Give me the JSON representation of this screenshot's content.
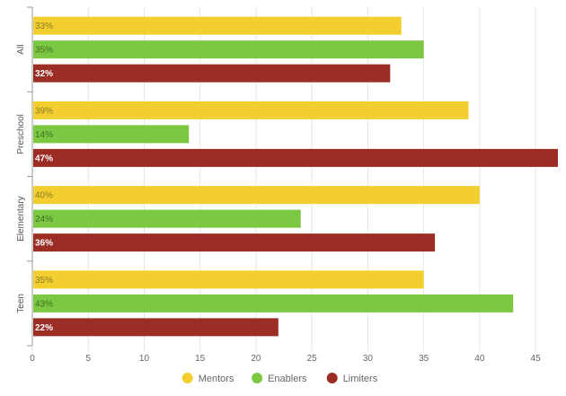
{
  "chart_data": {
    "type": "bar",
    "orientation": "horizontal",
    "title": "",
    "xlabel": "",
    "ylabel": "",
    "categories": [
      "All",
      "Preschool",
      "Elementary",
      "Teen"
    ],
    "series": [
      {
        "name": "Mentors",
        "color": "#f2cf2e",
        "label_color": "#8a7a2a",
        "values": [
          33,
          39,
          40,
          35
        ],
        "labels": [
          "33%",
          "39%",
          "40%",
          "35%"
        ]
      },
      {
        "name": "Enablers",
        "color": "#7dc843",
        "label_color": "#3f6e20",
        "values": [
          35,
          14,
          24,
          43
        ],
        "labels": [
          "35%",
          "14%",
          "24%",
          "43%"
        ]
      },
      {
        "name": "Limiters",
        "color": "#9b2d25",
        "label_color": "#ffffff",
        "values": [
          32,
          47,
          36,
          22
        ],
        "labels": [
          "32%",
          "47%",
          "36%",
          "22%"
        ]
      }
    ],
    "xlim": [
      0,
      47
    ],
    "x_ticks": [
      0,
      5,
      10,
      15,
      20,
      25,
      30,
      35,
      40,
      45
    ],
    "grid": true,
    "legend_position": "bottom-center"
  }
}
